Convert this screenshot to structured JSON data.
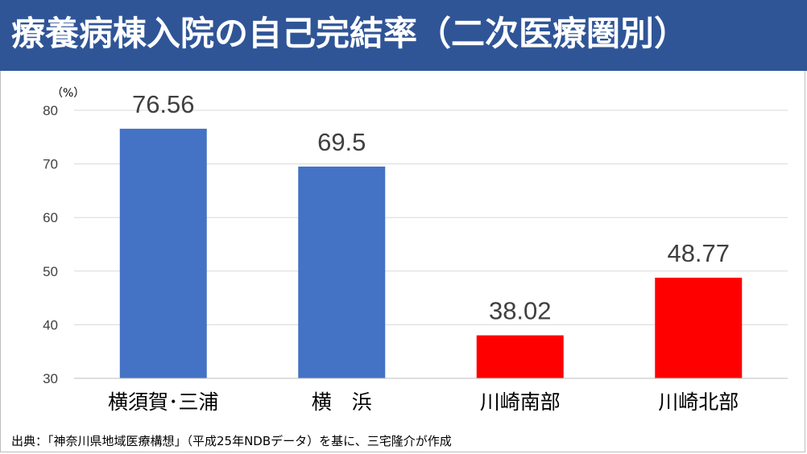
{
  "title": "療養病棟入院の自己完結率（二次医療圏別）",
  "source": "出典：「神奈川県地域医療構想」（平成25年NDBデータ）を基に、三宅隆介が作成",
  "colors": {
    "title_bar": "#2f5597",
    "blue_bar": "#4472c4",
    "red_bar": "#ff0000"
  },
  "chart_data": {
    "type": "bar",
    "unit_label": "（%）",
    "categories": [
      "横須賀･三浦",
      "横　浜",
      "川崎南部",
      "川崎北部"
    ],
    "values": [
      76.56,
      69.5,
      38.02,
      48.77
    ],
    "data_labels": [
      "76.56",
      "69.5",
      "38.02",
      "48.77"
    ],
    "bar_colors": [
      "#4472c4",
      "#4472c4",
      "#ff0000",
      "#ff0000"
    ],
    "ylim": [
      30,
      80
    ],
    "yticks": [
      30,
      40,
      50,
      60,
      70,
      80
    ],
    "grid": true
  }
}
